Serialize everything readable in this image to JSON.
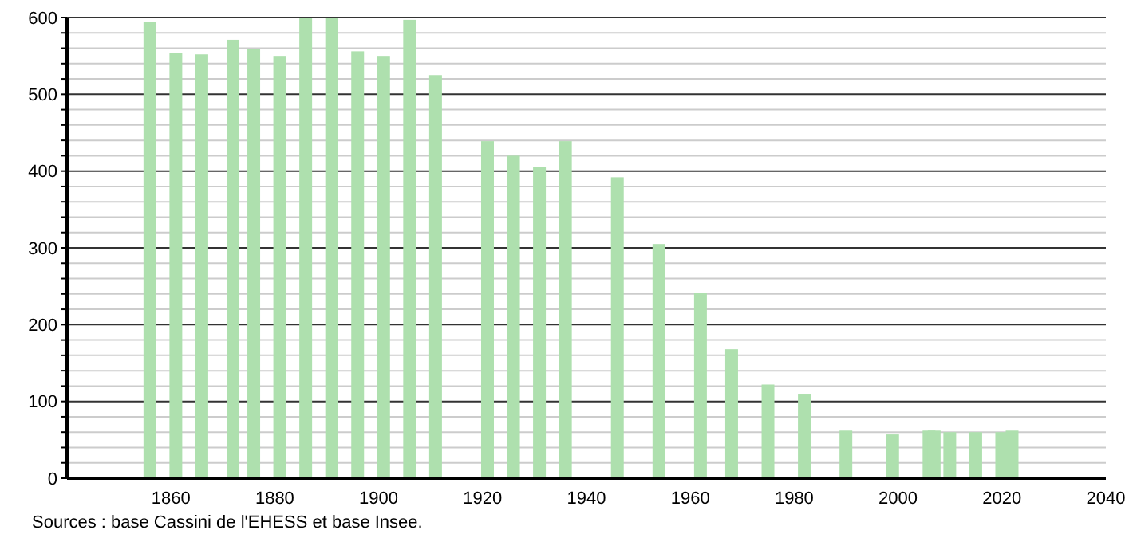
{
  "chart_data": {
    "type": "bar",
    "x": [
      1856,
      1861,
      1866,
      1872,
      1876,
      1881,
      1886,
      1891,
      1896,
      1901,
      1906,
      1911,
      1921,
      1926,
      1931,
      1936,
      1946,
      1954,
      1962,
      1968,
      1975,
      1982,
      1990,
      1999,
      2006,
      2007,
      2010,
      2015,
      2020,
      2022
    ],
    "values": [
      594,
      554,
      552,
      571,
      559,
      550,
      600,
      600,
      556,
      550,
      597,
      525,
      439,
      420,
      405,
      439,
      392,
      305,
      241,
      168,
      122,
      110,
      62,
      57,
      62,
      62,
      60,
      60,
      60,
      62
    ],
    "color": "#aee0ae",
    "xlim": [
      1840,
      2040
    ],
    "xticks": [
      1860,
      1880,
      1900,
      1920,
      1940,
      1960,
      1980,
      2000,
      2020,
      2040
    ],
    "ylim": [
      0,
      600
    ],
    "yticks": [
      0,
      {
        "value": 20,
        "label": null
      },
      {
        "value": 40,
        "label": null
      },
      {
        "value": 60,
        "label": null
      },
      {
        "value": 80,
        "label": null
      },
      100,
      {
        "value": 120,
        "label": null
      },
      {
        "value": 140,
        "label": null
      },
      {
        "value": 160,
        "label": null
      },
      {
        "value": 180,
        "label": null
      },
      200,
      {
        "value": 220,
        "label": null
      },
      {
        "value": 240,
        "label": null
      },
      {
        "value": 260,
        "label": null
      },
      {
        "value": 280,
        "label": null
      },
      300,
      {
        "value": 320,
        "label": null
      },
      {
        "value": 340,
        "label": null
      },
      {
        "value": 360,
        "label": null
      },
      {
        "value": 380,
        "label": null
      },
      400,
      {
        "value": 420,
        "label": null
      },
      {
        "value": 440,
        "label": null
      },
      {
        "value": 460,
        "label": null
      },
      {
        "value": 480,
        "label": null
      },
      500,
      {
        "value": 520,
        "label": null
      },
      {
        "value": 540,
        "label": null
      },
      {
        "value": 560,
        "label": null
      },
      {
        "value": 580,
        "label": null
      },
      600
    ],
    "grid": "y",
    "annotations": [
      "Sources : base Cassini de l'EHESS et base Insee."
    ]
  }
}
